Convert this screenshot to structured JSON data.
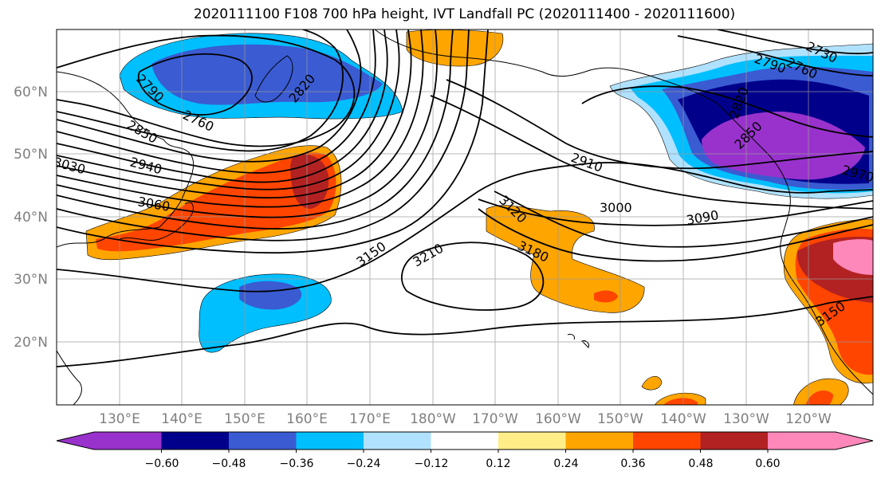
{
  "title": "2020111100 F108 700 hPa height, IVT Landfall PC (2020111400 - 2020111600)",
  "lat_labels": [
    "60°N",
    "50°N",
    "40°N",
    "30°N",
    "20°N"
  ],
  "lon_labels": [
    "130°E",
    "140°E",
    "150°E",
    "160°E",
    "170°E",
    "180°W",
    "170°W",
    "160°W",
    "150°W",
    "140°W",
    "130°W",
    "120°W"
  ],
  "contour_labels": [
    "2790",
    "2760",
    "2850",
    "2820",
    "2940",
    "3030",
    "3060",
    "2730",
    "2760",
    "2790",
    "2820",
    "2850",
    "2910",
    "3000",
    "3090",
    "3120",
    "3180",
    "3150",
    "3210",
    "3150",
    "2970"
  ],
  "colorbar": {
    "colors": [
      "#9932cc",
      "#00008b",
      "#3a5bd2",
      "#00bfff",
      "#b0e2ff",
      "#ffffff",
      "#ffee88",
      "#ffa500",
      "#ff4500",
      "#b22222",
      "#ff88bb"
    ],
    "tick_labels": [
      "−0.60",
      "−0.48",
      "−0.36",
      "−0.24",
      "−0.12",
      "0.12",
      "0.24",
      "0.36",
      "0.48",
      "0.60"
    ]
  }
}
